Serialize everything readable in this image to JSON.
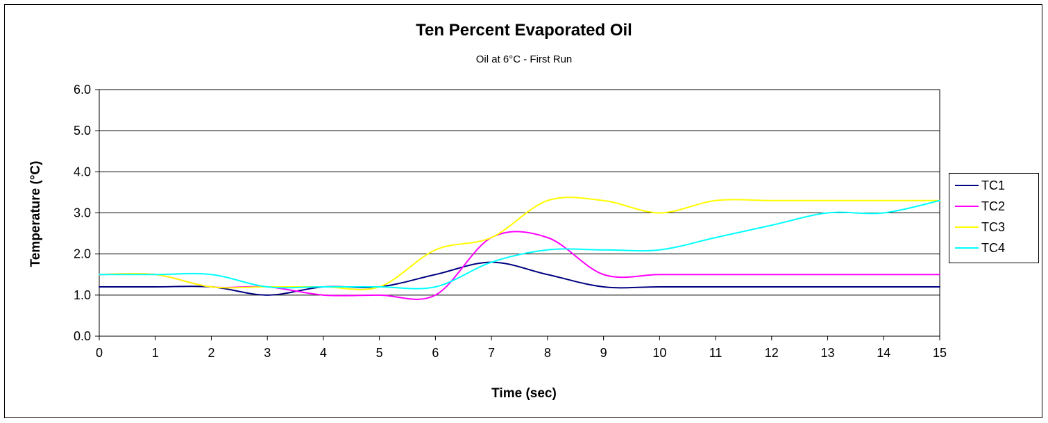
{
  "chart_data": {
    "type": "line",
    "title": "Ten Percent Evaporated Oil",
    "subtitle": "Oil at 6°C - First Run",
    "xlabel": "Time (sec)",
    "ylabel": "Temperature (°C)",
    "xlim": [
      0,
      15
    ],
    "ylim": [
      0,
      6
    ],
    "x_ticks": [
      "0",
      "1",
      "2",
      "3",
      "4",
      "5",
      "6",
      "7",
      "8",
      "9",
      "10",
      "11",
      "12",
      "13",
      "14",
      "15"
    ],
    "y_ticks": [
      "0.0",
      "1.0",
      "2.0",
      "3.0",
      "4.0",
      "5.0",
      "6.0"
    ],
    "grid": "horizontal",
    "legend_position": "right",
    "x": [
      0,
      1,
      2,
      3,
      4,
      5,
      6,
      7,
      8,
      9,
      10,
      11,
      12,
      13,
      14,
      15
    ],
    "series": [
      {
        "name": "TC1",
        "color": "#000080",
        "values": [
          1.2,
          1.2,
          1.2,
          1.0,
          1.2,
          1.2,
          1.5,
          1.8,
          1.5,
          1.2,
          1.2,
          1.2,
          1.2,
          1.2,
          1.2,
          1.2
        ]
      },
      {
        "name": "TC2",
        "color": "#ff00ff",
        "values": [
          1.5,
          1.5,
          1.2,
          1.2,
          1.0,
          1.0,
          1.0,
          2.4,
          2.4,
          1.5,
          1.5,
          1.5,
          1.5,
          1.5,
          1.5,
          1.5
        ]
      },
      {
        "name": "TC3",
        "color": "#ffff00",
        "values": [
          1.5,
          1.5,
          1.2,
          1.2,
          1.2,
          1.2,
          2.1,
          2.4,
          3.3,
          3.3,
          3.0,
          3.3,
          3.3,
          3.3,
          3.3,
          3.3
        ]
      },
      {
        "name": "TC4",
        "color": "#00ffff",
        "values": [
          1.5,
          1.5,
          1.5,
          1.2,
          1.2,
          1.2,
          1.2,
          1.8,
          2.1,
          2.1,
          2.1,
          2.4,
          2.7,
          3.0,
          3.0,
          3.3
        ]
      }
    ]
  }
}
